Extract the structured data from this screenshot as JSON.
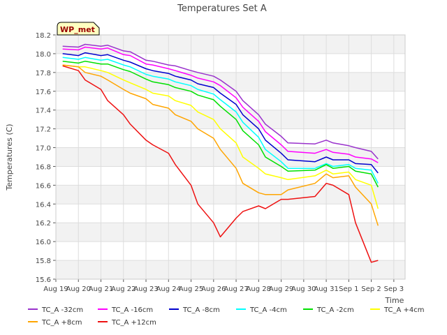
{
  "chart_data": {
    "type": "line",
    "title": "Temperatures Set A",
    "xlabel": "Time",
    "ylabel": "Temperatures (C)",
    "badge": "WP_met",
    "ylim": [
      15.6,
      18.2
    ],
    "yticks": [
      "15.6",
      "15.8",
      "16.0",
      "16.2",
      "16.4",
      "16.6",
      "16.8",
      "17.0",
      "17.2",
      "17.4",
      "17.6",
      "17.8",
      "18.0",
      "18.2"
    ],
    "xlim": [
      0,
      15.5
    ],
    "xticks": [
      {
        "v": 0,
        "label": "Aug 19"
      },
      {
        "v": 1,
        "label": "Aug 20"
      },
      {
        "v": 2,
        "label": "Aug 21"
      },
      {
        "v": 3,
        "label": "Aug 22"
      },
      {
        "v": 4,
        "label": "Aug 23"
      },
      {
        "v": 5,
        "label": "Aug 24"
      },
      {
        "v": 6,
        "label": "Aug 25"
      },
      {
        "v": 7,
        "label": "Aug 26"
      },
      {
        "v": 8,
        "label": "Aug 27"
      },
      {
        "v": 9,
        "label": "Aug 28"
      },
      {
        "v": 10,
        "label": "Aug 29"
      },
      {
        "v": 11,
        "label": "Aug 30"
      },
      {
        "v": 12,
        "label": "Aug 31"
      },
      {
        "v": 13,
        "label": "Sep 1"
      },
      {
        "v": 14,
        "label": "Sep 2"
      },
      {
        "v": 15,
        "label": "Sep 3"
      }
    ],
    "grid": true,
    "legend_position": "bottom",
    "series": [
      {
        "name": "TC_A -32cm",
        "color": "#9932cc",
        "points": [
          [
            0.3,
            18.08
          ],
          [
            1,
            18.07
          ],
          [
            1.3,
            18.1
          ],
          [
            2,
            18.08
          ],
          [
            2.3,
            18.09
          ],
          [
            3,
            18.03
          ],
          [
            3.3,
            18.02
          ],
          [
            4,
            17.93
          ],
          [
            4.3,
            17.92
          ],
          [
            5,
            17.88
          ],
          [
            5.3,
            17.87
          ],
          [
            6,
            17.82
          ],
          [
            6.3,
            17.8
          ],
          [
            7,
            17.76
          ],
          [
            7.3,
            17.72
          ],
          [
            8,
            17.6
          ],
          [
            8.3,
            17.5
          ],
          [
            9,
            17.35
          ],
          [
            9.3,
            17.25
          ],
          [
            10,
            17.12
          ],
          [
            10.3,
            17.05
          ],
          [
            11.5,
            17.04
          ],
          [
            12,
            17.08
          ],
          [
            12.3,
            17.05
          ],
          [
            13,
            17.02
          ],
          [
            13.3,
            17.0
          ],
          [
            14,
            16.96
          ],
          [
            14.3,
            16.88
          ]
        ]
      },
      {
        "name": "TC_A -16cm",
        "color": "#ff00ff",
        "points": [
          [
            0.3,
            18.05
          ],
          [
            1,
            18.04
          ],
          [
            1.3,
            18.07
          ],
          [
            2,
            18.05
          ],
          [
            2.3,
            18.06
          ],
          [
            3,
            17.99
          ],
          [
            3.3,
            17.98
          ],
          [
            4,
            17.89
          ],
          [
            4.3,
            17.88
          ],
          [
            5,
            17.84
          ],
          [
            5.3,
            17.82
          ],
          [
            6,
            17.77
          ],
          [
            6.3,
            17.74
          ],
          [
            7,
            17.7
          ],
          [
            7.3,
            17.66
          ],
          [
            8,
            17.53
          ],
          [
            8.3,
            17.43
          ],
          [
            9,
            17.28
          ],
          [
            9.3,
            17.17
          ],
          [
            10,
            17.03
          ],
          [
            10.3,
            16.96
          ],
          [
            11.5,
            16.94
          ],
          [
            12,
            16.98
          ],
          [
            12.3,
            16.95
          ],
          [
            13,
            16.93
          ],
          [
            13.3,
            16.9
          ],
          [
            14,
            16.88
          ],
          [
            14.3,
            16.84
          ]
        ]
      },
      {
        "name": "TC_A -8cm",
        "color": "#0000cd",
        "points": [
          [
            0.3,
            18.0
          ],
          [
            1,
            17.98
          ],
          [
            1.3,
            18.01
          ],
          [
            2,
            17.98
          ],
          [
            2.3,
            17.99
          ],
          [
            3,
            17.93
          ],
          [
            3.3,
            17.91
          ],
          [
            4,
            17.84
          ],
          [
            4.3,
            17.82
          ],
          [
            5,
            17.79
          ],
          [
            5.3,
            17.76
          ],
          [
            6,
            17.72
          ],
          [
            6.3,
            17.68
          ],
          [
            7,
            17.64
          ],
          [
            7.3,
            17.58
          ],
          [
            8,
            17.46
          ],
          [
            8.3,
            17.35
          ],
          [
            9,
            17.2
          ],
          [
            9.3,
            17.08
          ],
          [
            10,
            16.94
          ],
          [
            10.3,
            16.87
          ],
          [
            11.5,
            16.85
          ],
          [
            12,
            16.9
          ],
          [
            12.3,
            16.87
          ],
          [
            13,
            16.87
          ],
          [
            13.3,
            16.83
          ],
          [
            14,
            16.82
          ],
          [
            14.3,
            16.73
          ]
        ]
      },
      {
        "name": "TC_A -4cm",
        "color": "#00ffff",
        "points": [
          [
            0.3,
            17.96
          ],
          [
            1,
            17.94
          ],
          [
            1.3,
            17.96
          ],
          [
            2,
            17.93
          ],
          [
            2.3,
            17.94
          ],
          [
            3,
            17.88
          ],
          [
            3.3,
            17.86
          ],
          [
            4,
            17.78
          ],
          [
            4.3,
            17.76
          ],
          [
            5,
            17.73
          ],
          [
            5.3,
            17.7
          ],
          [
            6,
            17.66
          ],
          [
            6.3,
            17.62
          ],
          [
            7,
            17.57
          ],
          [
            7.3,
            17.51
          ],
          [
            8,
            17.38
          ],
          [
            8.3,
            17.27
          ],
          [
            9,
            17.11
          ],
          [
            9.3,
            16.98
          ],
          [
            10,
            16.85
          ],
          [
            10.3,
            16.78
          ],
          [
            11.5,
            16.78
          ],
          [
            12,
            16.83
          ],
          [
            12.3,
            16.8
          ],
          [
            13,
            16.82
          ],
          [
            13.3,
            16.78
          ],
          [
            14,
            16.76
          ],
          [
            14.3,
            16.62
          ]
        ]
      },
      {
        "name": "TC_A -2cm",
        "color": "#00e000",
        "points": [
          [
            0.3,
            17.92
          ],
          [
            1,
            17.9
          ],
          [
            1.3,
            17.92
          ],
          [
            2,
            17.89
          ],
          [
            2.3,
            17.89
          ],
          [
            3,
            17.83
          ],
          [
            3.3,
            17.81
          ],
          [
            4,
            17.73
          ],
          [
            4.3,
            17.7
          ],
          [
            5,
            17.67
          ],
          [
            5.3,
            17.64
          ],
          [
            6,
            17.6
          ],
          [
            6.3,
            17.56
          ],
          [
            7,
            17.51
          ],
          [
            7.3,
            17.44
          ],
          [
            8,
            17.3
          ],
          [
            8.3,
            17.18
          ],
          [
            9,
            17.03
          ],
          [
            9.3,
            16.9
          ],
          [
            10,
            16.8
          ],
          [
            10.3,
            16.75
          ],
          [
            11.5,
            16.76
          ],
          [
            12,
            16.82
          ],
          [
            12.3,
            16.78
          ],
          [
            13,
            16.8
          ],
          [
            13.3,
            16.75
          ],
          [
            14,
            16.72
          ],
          [
            14.3,
            16.58
          ]
        ]
      },
      {
        "name": "TC_A +4cm",
        "color": "#ffff00",
        "points": [
          [
            0.3,
            17.88
          ],
          [
            1,
            17.86
          ],
          [
            1.3,
            17.86
          ],
          [
            2,
            17.82
          ],
          [
            2.3,
            17.8
          ],
          [
            3,
            17.72
          ],
          [
            3.3,
            17.69
          ],
          [
            4,
            17.62
          ],
          [
            4.3,
            17.58
          ],
          [
            5,
            17.55
          ],
          [
            5.3,
            17.5
          ],
          [
            6,
            17.45
          ],
          [
            6.3,
            17.38
          ],
          [
            7,
            17.3
          ],
          [
            7.3,
            17.2
          ],
          [
            8,
            17.05
          ],
          [
            8.3,
            16.9
          ],
          [
            9,
            16.78
          ],
          [
            9.3,
            16.72
          ],
          [
            10,
            16.68
          ],
          [
            10.3,
            16.66
          ],
          [
            11.5,
            16.7
          ],
          [
            12,
            16.76
          ],
          [
            12.3,
            16.72
          ],
          [
            13,
            16.74
          ],
          [
            13.3,
            16.66
          ],
          [
            14,
            16.6
          ],
          [
            14.3,
            16.35
          ]
        ]
      },
      {
        "name": "TC_A +8cm",
        "color": "#ffa500",
        "points": [
          [
            0.3,
            17.88
          ],
          [
            1,
            17.86
          ],
          [
            1.3,
            17.8
          ],
          [
            2,
            17.76
          ],
          [
            2.3,
            17.72
          ],
          [
            3,
            17.62
          ],
          [
            3.3,
            17.58
          ],
          [
            4,
            17.52
          ],
          [
            4.3,
            17.46
          ],
          [
            5,
            17.42
          ],
          [
            5.3,
            17.35
          ],
          [
            6,
            17.28
          ],
          [
            6.3,
            17.2
          ],
          [
            7,
            17.1
          ],
          [
            7.3,
            16.98
          ],
          [
            8,
            16.78
          ],
          [
            8.3,
            16.62
          ],
          [
            9,
            16.52
          ],
          [
            9.3,
            16.5
          ],
          [
            10,
            16.5
          ],
          [
            10.3,
            16.55
          ],
          [
            11.5,
            16.62
          ],
          [
            12,
            16.72
          ],
          [
            12.3,
            16.68
          ],
          [
            13,
            16.7
          ],
          [
            13.3,
            16.58
          ],
          [
            14,
            16.4
          ],
          [
            14.3,
            16.17
          ]
        ]
      },
      {
        "name": "TC_A +12cm",
        "color": "#ee1111",
        "points": [
          [
            0.3,
            17.87
          ],
          [
            1,
            17.82
          ],
          [
            1.3,
            17.72
          ],
          [
            2,
            17.62
          ],
          [
            2.3,
            17.5
          ],
          [
            3,
            17.35
          ],
          [
            3.3,
            17.25
          ],
          [
            4,
            17.08
          ],
          [
            4.3,
            17.03
          ],
          [
            5,
            16.94
          ],
          [
            5.3,
            16.82
          ],
          [
            6,
            16.6
          ],
          [
            6.3,
            16.4
          ],
          [
            7,
            16.2
          ],
          [
            7.3,
            16.05
          ],
          [
            8,
            16.25
          ],
          [
            8.3,
            16.32
          ],
          [
            9,
            16.38
          ],
          [
            9.3,
            16.35
          ],
          [
            10,
            16.45
          ],
          [
            10.3,
            16.45
          ],
          [
            11.5,
            16.48
          ],
          [
            12,
            16.62
          ],
          [
            12.3,
            16.6
          ],
          [
            13,
            16.5
          ],
          [
            13.3,
            16.2
          ],
          [
            14,
            15.78
          ],
          [
            14.3,
            15.8
          ]
        ]
      }
    ]
  }
}
